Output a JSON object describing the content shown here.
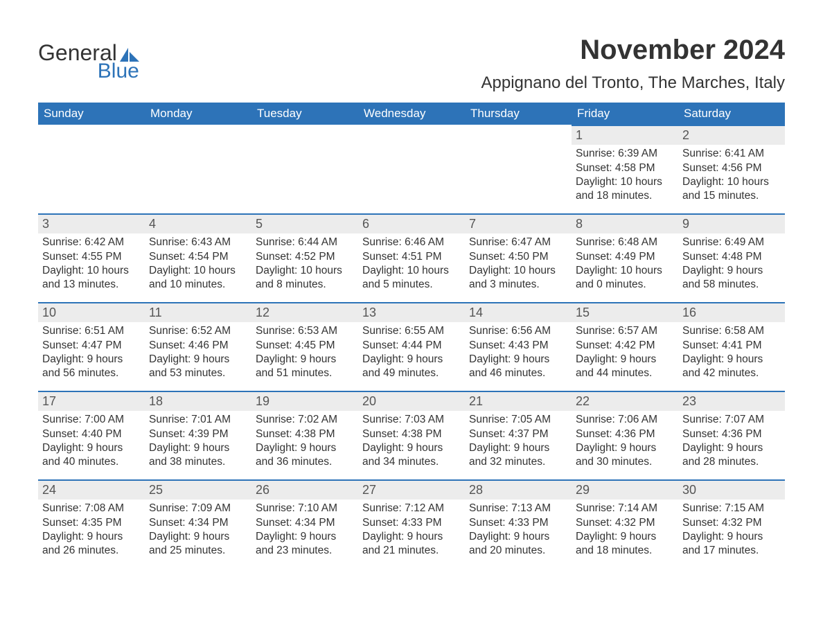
{
  "logo": {
    "word1": "General",
    "word2": "Blue",
    "accent_color": "#2d73b8"
  },
  "title": "November 2024",
  "location": "Appignano del Tronto, The Marches, Italy",
  "colors": {
    "header_bg": "#2d73b8",
    "header_text": "#ffffff",
    "daynum_bg": "#ececec",
    "daynum_border": "#2d73b8",
    "body_text": "#333333"
  },
  "day_headers": [
    "Sunday",
    "Monday",
    "Tuesday",
    "Wednesday",
    "Thursday",
    "Friday",
    "Saturday"
  ],
  "weeks": [
    [
      null,
      null,
      null,
      null,
      null,
      {
        "n": "1",
        "sunrise": "Sunrise: 6:39 AM",
        "sunset": "Sunset: 4:58 PM",
        "daylight": "Daylight: 10 hours and 18 minutes."
      },
      {
        "n": "2",
        "sunrise": "Sunrise: 6:41 AM",
        "sunset": "Sunset: 4:56 PM",
        "daylight": "Daylight: 10 hours and 15 minutes."
      }
    ],
    [
      {
        "n": "3",
        "sunrise": "Sunrise: 6:42 AM",
        "sunset": "Sunset: 4:55 PM",
        "daylight": "Daylight: 10 hours and 13 minutes."
      },
      {
        "n": "4",
        "sunrise": "Sunrise: 6:43 AM",
        "sunset": "Sunset: 4:54 PM",
        "daylight": "Daylight: 10 hours and 10 minutes."
      },
      {
        "n": "5",
        "sunrise": "Sunrise: 6:44 AM",
        "sunset": "Sunset: 4:52 PM",
        "daylight": "Daylight: 10 hours and 8 minutes."
      },
      {
        "n": "6",
        "sunrise": "Sunrise: 6:46 AM",
        "sunset": "Sunset: 4:51 PM",
        "daylight": "Daylight: 10 hours and 5 minutes."
      },
      {
        "n": "7",
        "sunrise": "Sunrise: 6:47 AM",
        "sunset": "Sunset: 4:50 PM",
        "daylight": "Daylight: 10 hours and 3 minutes."
      },
      {
        "n": "8",
        "sunrise": "Sunrise: 6:48 AM",
        "sunset": "Sunset: 4:49 PM",
        "daylight": "Daylight: 10 hours and 0 minutes."
      },
      {
        "n": "9",
        "sunrise": "Sunrise: 6:49 AM",
        "sunset": "Sunset: 4:48 PM",
        "daylight": "Daylight: 9 hours and 58 minutes."
      }
    ],
    [
      {
        "n": "10",
        "sunrise": "Sunrise: 6:51 AM",
        "sunset": "Sunset: 4:47 PM",
        "daylight": "Daylight: 9 hours and 56 minutes."
      },
      {
        "n": "11",
        "sunrise": "Sunrise: 6:52 AM",
        "sunset": "Sunset: 4:46 PM",
        "daylight": "Daylight: 9 hours and 53 minutes."
      },
      {
        "n": "12",
        "sunrise": "Sunrise: 6:53 AM",
        "sunset": "Sunset: 4:45 PM",
        "daylight": "Daylight: 9 hours and 51 minutes."
      },
      {
        "n": "13",
        "sunrise": "Sunrise: 6:55 AM",
        "sunset": "Sunset: 4:44 PM",
        "daylight": "Daylight: 9 hours and 49 minutes."
      },
      {
        "n": "14",
        "sunrise": "Sunrise: 6:56 AM",
        "sunset": "Sunset: 4:43 PM",
        "daylight": "Daylight: 9 hours and 46 minutes."
      },
      {
        "n": "15",
        "sunrise": "Sunrise: 6:57 AM",
        "sunset": "Sunset: 4:42 PM",
        "daylight": "Daylight: 9 hours and 44 minutes."
      },
      {
        "n": "16",
        "sunrise": "Sunrise: 6:58 AM",
        "sunset": "Sunset: 4:41 PM",
        "daylight": "Daylight: 9 hours and 42 minutes."
      }
    ],
    [
      {
        "n": "17",
        "sunrise": "Sunrise: 7:00 AM",
        "sunset": "Sunset: 4:40 PM",
        "daylight": "Daylight: 9 hours and 40 minutes."
      },
      {
        "n": "18",
        "sunrise": "Sunrise: 7:01 AM",
        "sunset": "Sunset: 4:39 PM",
        "daylight": "Daylight: 9 hours and 38 minutes."
      },
      {
        "n": "19",
        "sunrise": "Sunrise: 7:02 AM",
        "sunset": "Sunset: 4:38 PM",
        "daylight": "Daylight: 9 hours and 36 minutes."
      },
      {
        "n": "20",
        "sunrise": "Sunrise: 7:03 AM",
        "sunset": "Sunset: 4:38 PM",
        "daylight": "Daylight: 9 hours and 34 minutes."
      },
      {
        "n": "21",
        "sunrise": "Sunrise: 7:05 AM",
        "sunset": "Sunset: 4:37 PM",
        "daylight": "Daylight: 9 hours and 32 minutes."
      },
      {
        "n": "22",
        "sunrise": "Sunrise: 7:06 AM",
        "sunset": "Sunset: 4:36 PM",
        "daylight": "Daylight: 9 hours and 30 minutes."
      },
      {
        "n": "23",
        "sunrise": "Sunrise: 7:07 AM",
        "sunset": "Sunset: 4:36 PM",
        "daylight": "Daylight: 9 hours and 28 minutes."
      }
    ],
    [
      {
        "n": "24",
        "sunrise": "Sunrise: 7:08 AM",
        "sunset": "Sunset: 4:35 PM",
        "daylight": "Daylight: 9 hours and 26 minutes."
      },
      {
        "n": "25",
        "sunrise": "Sunrise: 7:09 AM",
        "sunset": "Sunset: 4:34 PM",
        "daylight": "Daylight: 9 hours and 25 minutes."
      },
      {
        "n": "26",
        "sunrise": "Sunrise: 7:10 AM",
        "sunset": "Sunset: 4:34 PM",
        "daylight": "Daylight: 9 hours and 23 minutes."
      },
      {
        "n": "27",
        "sunrise": "Sunrise: 7:12 AM",
        "sunset": "Sunset: 4:33 PM",
        "daylight": "Daylight: 9 hours and 21 minutes."
      },
      {
        "n": "28",
        "sunrise": "Sunrise: 7:13 AM",
        "sunset": "Sunset: 4:33 PM",
        "daylight": "Daylight: 9 hours and 20 minutes."
      },
      {
        "n": "29",
        "sunrise": "Sunrise: 7:14 AM",
        "sunset": "Sunset: 4:32 PM",
        "daylight": "Daylight: 9 hours and 18 minutes."
      },
      {
        "n": "30",
        "sunrise": "Sunrise: 7:15 AM",
        "sunset": "Sunset: 4:32 PM",
        "daylight": "Daylight: 9 hours and 17 minutes."
      }
    ]
  ]
}
